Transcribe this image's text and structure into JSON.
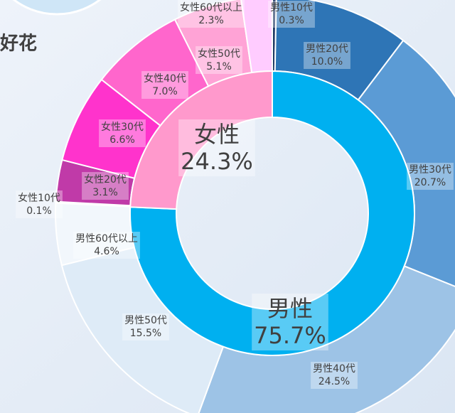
{
  "chart_data": {
    "type": "sunburst",
    "title": "好花",
    "inner": {
      "categories": [
        "男性",
        "女性"
      ],
      "values": [
        75.7,
        24.3
      ],
      "value_labels": [
        "75.7%",
        "24.3%"
      ],
      "colors": [
        "#00b0f0",
        "#ff99cc"
      ]
    },
    "outer": {
      "categories": [
        "男性10代",
        "男性20代",
        "男性30代",
        "男性40代",
        "男性50代",
        "男性60代以上",
        "女性10代",
        "女性20代",
        "女性30代",
        "女性40代",
        "女性50代",
        "女性60代以上"
      ],
      "values": [
        0.3,
        10.0,
        20.7,
        24.5,
        15.5,
        4.6,
        0.1,
        3.1,
        6.6,
        7.0,
        5.1,
        2.3
      ],
      "value_labels": [
        "0.3%",
        "10.0%",
        "20.7%",
        "24.5%",
        "15.5%",
        "4.6%",
        "0.1%",
        "3.1%",
        "6.6%",
        "7.0%",
        "5.1%",
        "2.3%"
      ],
      "colors": [
        "#1f3864",
        "#2e75b6",
        "#5b9bd5",
        "#9dc3e6",
        "#deebf7",
        "#f2f7fc",
        "#8b0050",
        "#c03aa8",
        "#ff33cc",
        "#ff66cc",
        "#ffa3d6",
        "#ffccff"
      ]
    }
  }
}
